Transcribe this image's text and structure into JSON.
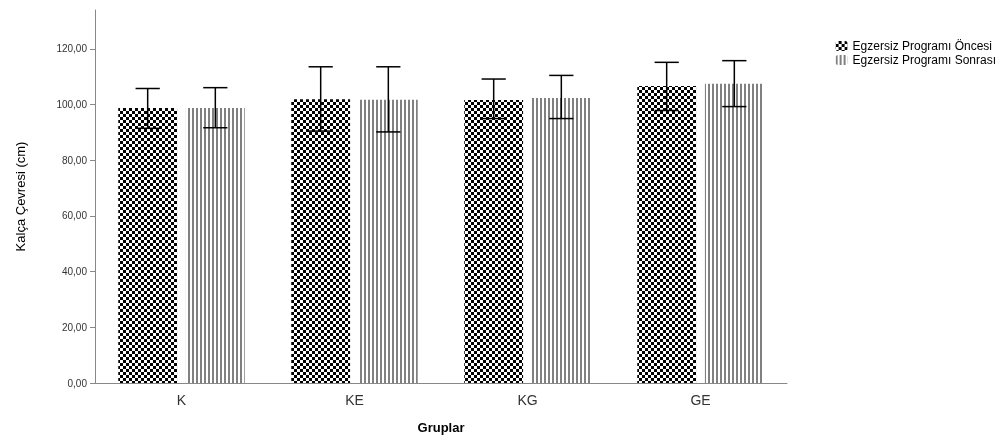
{
  "chart_data": {
    "type": "bar",
    "xlabel": "Gruplar",
    "ylabel": "Kalça Çevresi (cm)",
    "categories": [
      "K",
      "KE",
      "KG",
      "GE"
    ],
    "series": [
      {
        "name": "Egzersiz Programı Öncesi",
        "color": "#000000",
        "values": [
          98.8,
          101.9,
          101.7,
          106.7
        ],
        "errors": [
          [
            91.5,
            105.8
          ],
          [
            90.5,
            113.6
          ],
          [
            95.0,
            109.2
          ],
          [
            97.9,
            115.2
          ]
        ]
      },
      {
        "name": "Egzersiz Programı Sonrası",
        "color": "#808080",
        "values": [
          98.8,
          101.8,
          102.4,
          107.5
        ],
        "errors": [
          [
            91.7,
            106.1
          ],
          [
            90.2,
            113.6
          ],
          [
            95.0,
            110.5
          ],
          [
            99.3,
            115.8
          ]
        ]
      }
    ],
    "ylim": [
      0,
      134
    ],
    "yticks": [
      {
        "value": 0,
        "label": "0,00"
      },
      {
        "value": 20,
        "label": "20,00"
      },
      {
        "value": 40,
        "label": "40,00"
      },
      {
        "value": 60,
        "label": "60,00"
      },
      {
        "value": 80,
        "label": "80,00"
      },
      {
        "value": 100,
        "label": "100,00"
      },
      {
        "value": 120,
        "label": "120,00"
      }
    ],
    "grid": false,
    "legend": "top right"
  }
}
